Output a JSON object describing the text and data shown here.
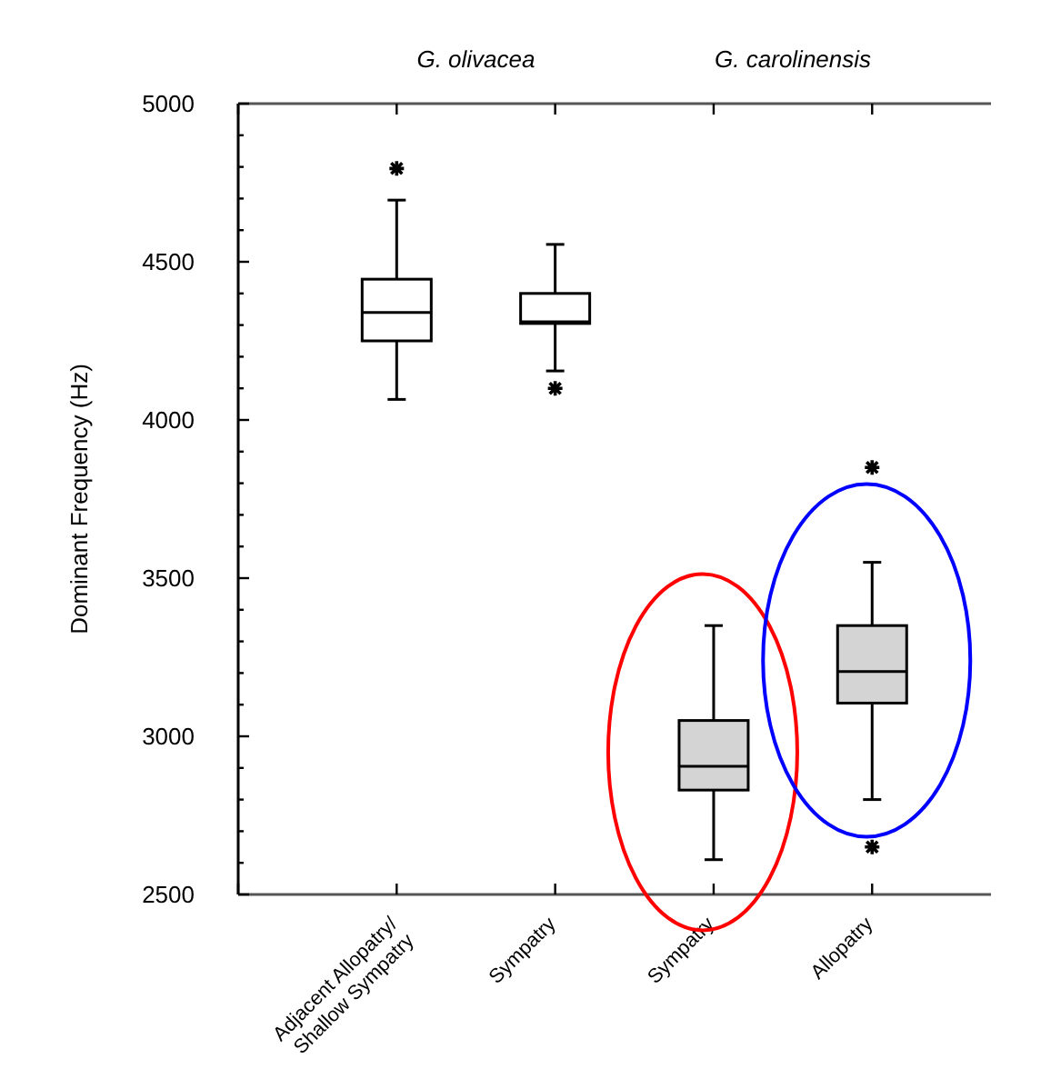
{
  "chart_data": {
    "type": "box",
    "ylabel": "Dominant Frequency (Hz)",
    "categories": [
      "Adjacent Allopatry/\nShallow Sympatry",
      "Sympatry",
      "Sympatry",
      "Allopatry"
    ],
    "colors": [
      "#ffffff",
      "#ffffff",
      "#d4d4d4",
      "#d4d4d4"
    ],
    "boxes": [
      {
        "low": 4065,
        "q1": 4250,
        "median": 4340,
        "q3": 4445,
        "high": 4695,
        "outliers": [
          4795
        ]
      },
      {
        "low": 4155,
        "q1": 4305,
        "median": 4310,
        "q3": 4400,
        "high": 4555,
        "outliers": [
          4100
        ]
      },
      {
        "low": 2610,
        "q1": 2830,
        "median": 2905,
        "q3": 3050,
        "high": 3350
      },
      {
        "low": 2800,
        "q1": 3105,
        "median": 3205,
        "q3": 3350,
        "high": 3550,
        "outliers": [
          3850,
          2650
        ]
      }
    ],
    "ylim": [
      2500,
      5000
    ],
    "yticks": [
      2500,
      {
        "value": 2600,
        "label": null
      },
      {
        "value": 2700,
        "label": null
      },
      {
        "value": 2800,
        "label": null
      },
      {
        "value": 2900,
        "label": null
      },
      3000,
      {
        "value": 3100,
        "label": null
      },
      {
        "value": 3200,
        "label": null
      },
      {
        "value": 3300,
        "label": null
      },
      {
        "value": 3400,
        "label": null
      },
      3500,
      {
        "value": 3600,
        "label": null
      },
      {
        "value": 3700,
        "label": null
      },
      {
        "value": 3800,
        "label": null
      },
      {
        "value": 3900,
        "label": null
      },
      4000,
      {
        "value": 4100,
        "label": null
      },
      {
        "value": 4200,
        "label": null
      },
      {
        "value": 4300,
        "label": null
      },
      {
        "value": 4400,
        "label": null
      },
      4500,
      {
        "value": 4600,
        "label": null
      },
      {
        "value": 4700,
        "label": null
      },
      {
        "value": 4800,
        "label": null
      },
      {
        "value": 4900,
        "label": null
      },
      5000
    ],
    "annotations": [
      "G. olivacea",
      "G. carolinensis"
    ],
    "grid": false
  }
}
